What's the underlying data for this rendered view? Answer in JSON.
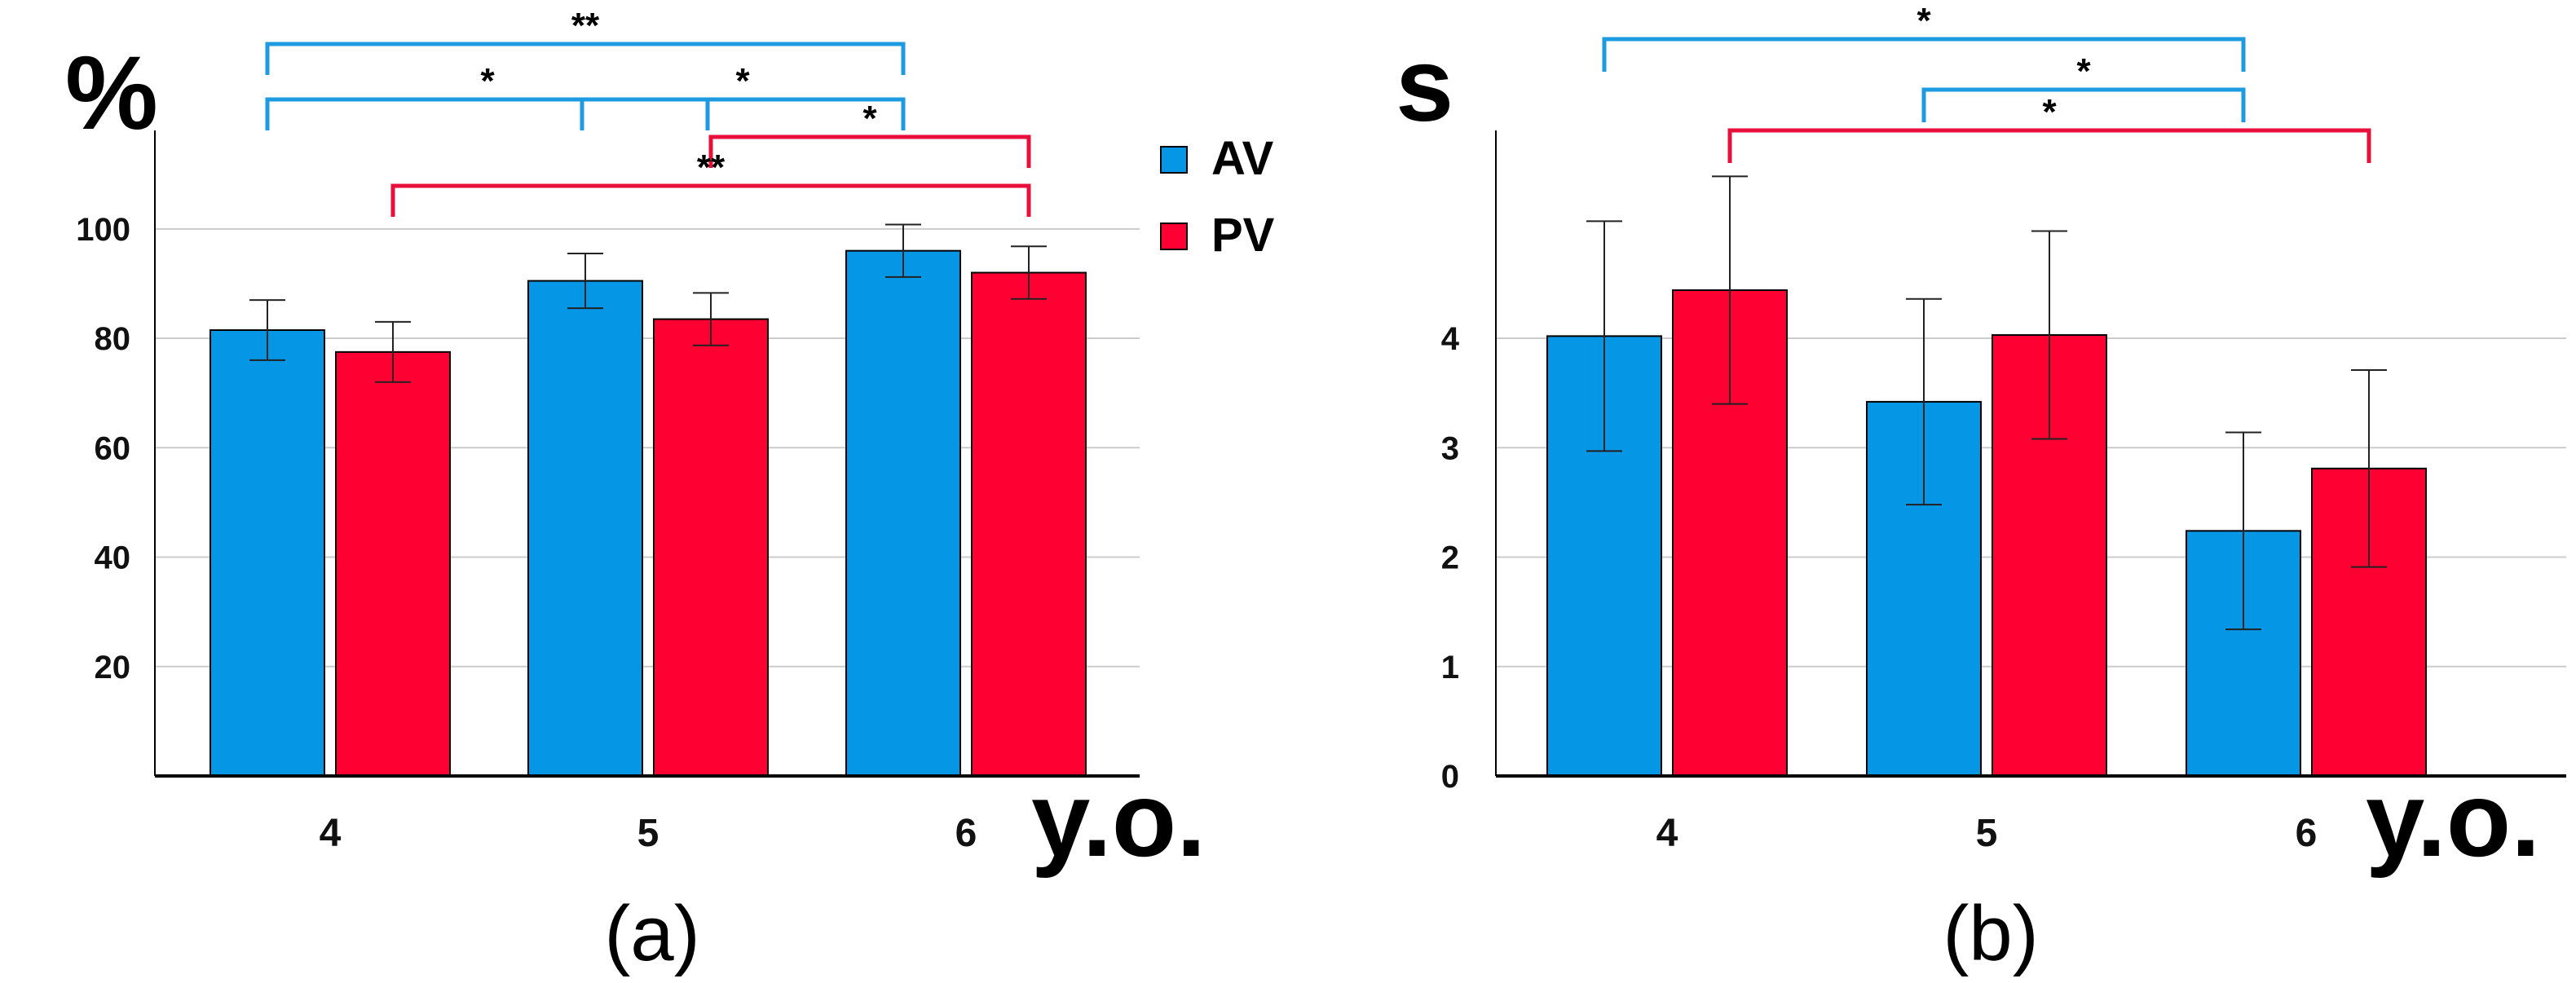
{
  "colors": {
    "av": "#0596E6",
    "pv": "#FF0033",
    "grid": "#CCCCCC",
    "axis": "#000000",
    "bracket_av": "#1E9BE0",
    "bracket_pv": "#E8103A"
  },
  "chart_data": [
    {
      "id": "a",
      "type": "bar",
      "ylabel": "%",
      "xlabel": "y.o.",
      "subtitle": "(a)",
      "categories": [
        "4",
        "5",
        "6"
      ],
      "yticks": [
        20,
        40,
        60,
        80,
        100
      ],
      "ylim": [
        0,
        118
      ],
      "grid": true,
      "legend": {
        "position": "top-right",
        "entries": [
          "AV",
          "PV"
        ]
      },
      "series": [
        {
          "name": "AV",
          "values": [
            81.5,
            90.5,
            96.0
          ],
          "errors": [
            5.5,
            5.0,
            4.8
          ]
        },
        {
          "name": "PV",
          "values": [
            77.5,
            83.5,
            92.0
          ],
          "errors": [
            5.5,
            4.8,
            4.8
          ]
        }
      ],
      "brackets": [
        {
          "from": [
            "4",
            "AV"
          ],
          "to": [
            "6",
            "AV"
          ],
          "label": "**",
          "color": "av",
          "level": 4
        },
        {
          "from": [
            "4",
            "AV"
          ],
          "to": [
            "5",
            "PV"
          ],
          "label": "*",
          "color": "av",
          "level": 3
        },
        {
          "from": [
            "5",
            "AV"
          ],
          "to": [
            "6",
            "AV"
          ],
          "label": "*",
          "color": "av",
          "level": 3
        },
        {
          "from": [
            "5",
            "PV"
          ],
          "to": [
            "6",
            "PV"
          ],
          "label": "*",
          "color": "pv",
          "level": 2
        },
        {
          "from": [
            "4",
            "PV"
          ],
          "to": [
            "6",
            "PV"
          ],
          "label": "**",
          "color": "pv",
          "level": 1
        }
      ]
    },
    {
      "id": "b",
      "type": "bar",
      "ylabel": "s",
      "xlabel": "y.o.",
      "subtitle": "(b)",
      "categories": [
        "4",
        "5",
        "6"
      ],
      "yticks": [
        0,
        1,
        2,
        3,
        4
      ],
      "ylim": [
        0,
        5.9
      ],
      "grid": true,
      "series": [
        {
          "name": "AV",
          "values": [
            4.02,
            3.42,
            2.24
          ],
          "errors": [
            1.05,
            0.94,
            0.9
          ]
        },
        {
          "name": "PV",
          "values": [
            4.44,
            4.03,
            2.81
          ],
          "errors": [
            1.04,
            0.95,
            0.9
          ]
        }
      ],
      "brackets": [
        {
          "from": [
            "4",
            "AV"
          ],
          "to": [
            "6",
            "AV"
          ],
          "label": "*",
          "color": "av",
          "level": 3
        },
        {
          "from": [
            "5",
            "AV"
          ],
          "to": [
            "6",
            "AV"
          ],
          "label": "*",
          "color": "av",
          "level": 2
        },
        {
          "from": [
            "4",
            "PV"
          ],
          "to": [
            "6",
            "PV"
          ],
          "label": "*",
          "color": "pv",
          "level": 1
        }
      ]
    }
  ]
}
